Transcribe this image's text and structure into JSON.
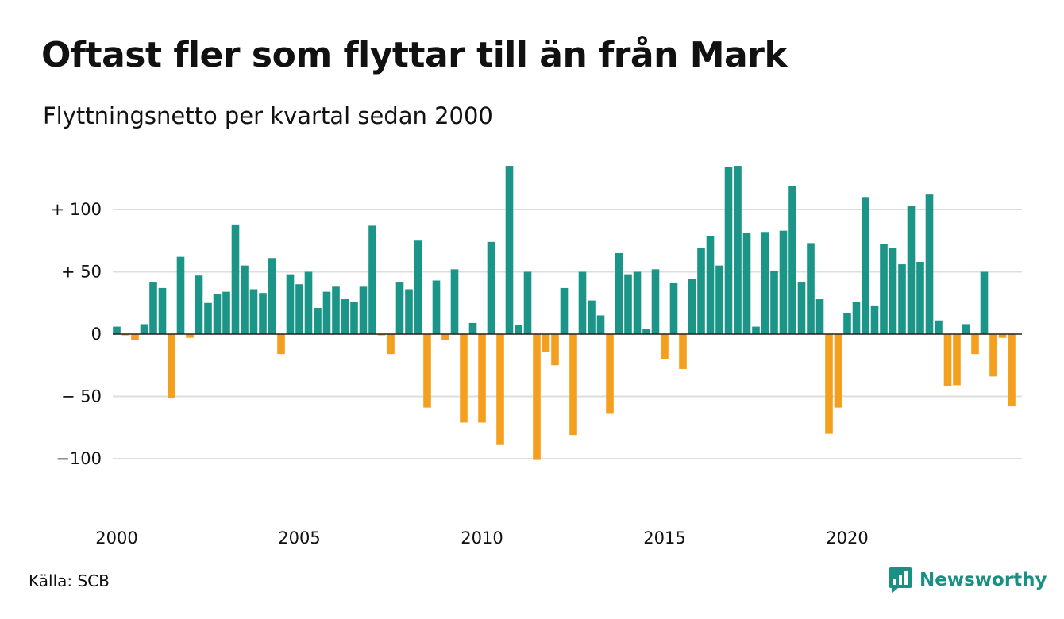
{
  "title": "Oftast fler som flyttar till än från Mark",
  "subtitle": "Flyttningsnetto per kvartal sedan 2000",
  "source": "Källa: SCB",
  "brand": "Newsworthy",
  "colors": {
    "positive": "#1b9587",
    "negative": "#f59f1e",
    "grid": "#dedede",
    "axis": "#222222",
    "brand": "#1a8f83"
  },
  "icons": {
    "brand": "newsworthy-logo-icon"
  },
  "chart_data": {
    "type": "bar",
    "title": "Oftast fler som flyttar till än från Mark",
    "subtitle": "Flyttningsnetto per kvartal sedan 2000",
    "x_unit": "quarter",
    "x_start": "2000 Q1",
    "x_tick_labels": [
      "2000",
      "2005",
      "2010",
      "2015",
      "2020"
    ],
    "y_ticks": [
      100,
      50,
      0,
      -50,
      -100
    ],
    "y_tick_labels": [
      "+ 100",
      "+  50",
      "0",
      "− 50",
      "−100"
    ],
    "ylim": [
      -130,
      140
    ],
    "grid": true,
    "legend": "none",
    "values": [
      6,
      -1,
      -5,
      8,
      42,
      37,
      -51,
      62,
      -3,
      47,
      25,
      32,
      34,
      88,
      55,
      36,
      33,
      61,
      -16,
      48,
      40,
      50,
      21,
      34,
      38,
      28,
      26,
      38,
      87,
      -1,
      -16,
      42,
      36,
      75,
      -59,
      43,
      -5,
      52,
      -71,
      9,
      -71,
      74,
      -89,
      135,
      7,
      50,
      -101,
      -14,
      -25,
      37,
      -81,
      50,
      27,
      15,
      -64,
      65,
      48,
      50,
      4,
      52,
      -20,
      41,
      -28,
      44,
      69,
      79,
      55,
      134,
      135,
      81,
      6,
      82,
      51,
      83,
      119,
      42,
      73,
      28,
      -80,
      -59,
      17,
      26,
      110,
      23,
      72,
      69,
      56,
      103,
      58,
      112,
      11,
      -42,
      -41,
      8,
      -16,
      50,
      -34,
      -3,
      -58
    ]
  }
}
